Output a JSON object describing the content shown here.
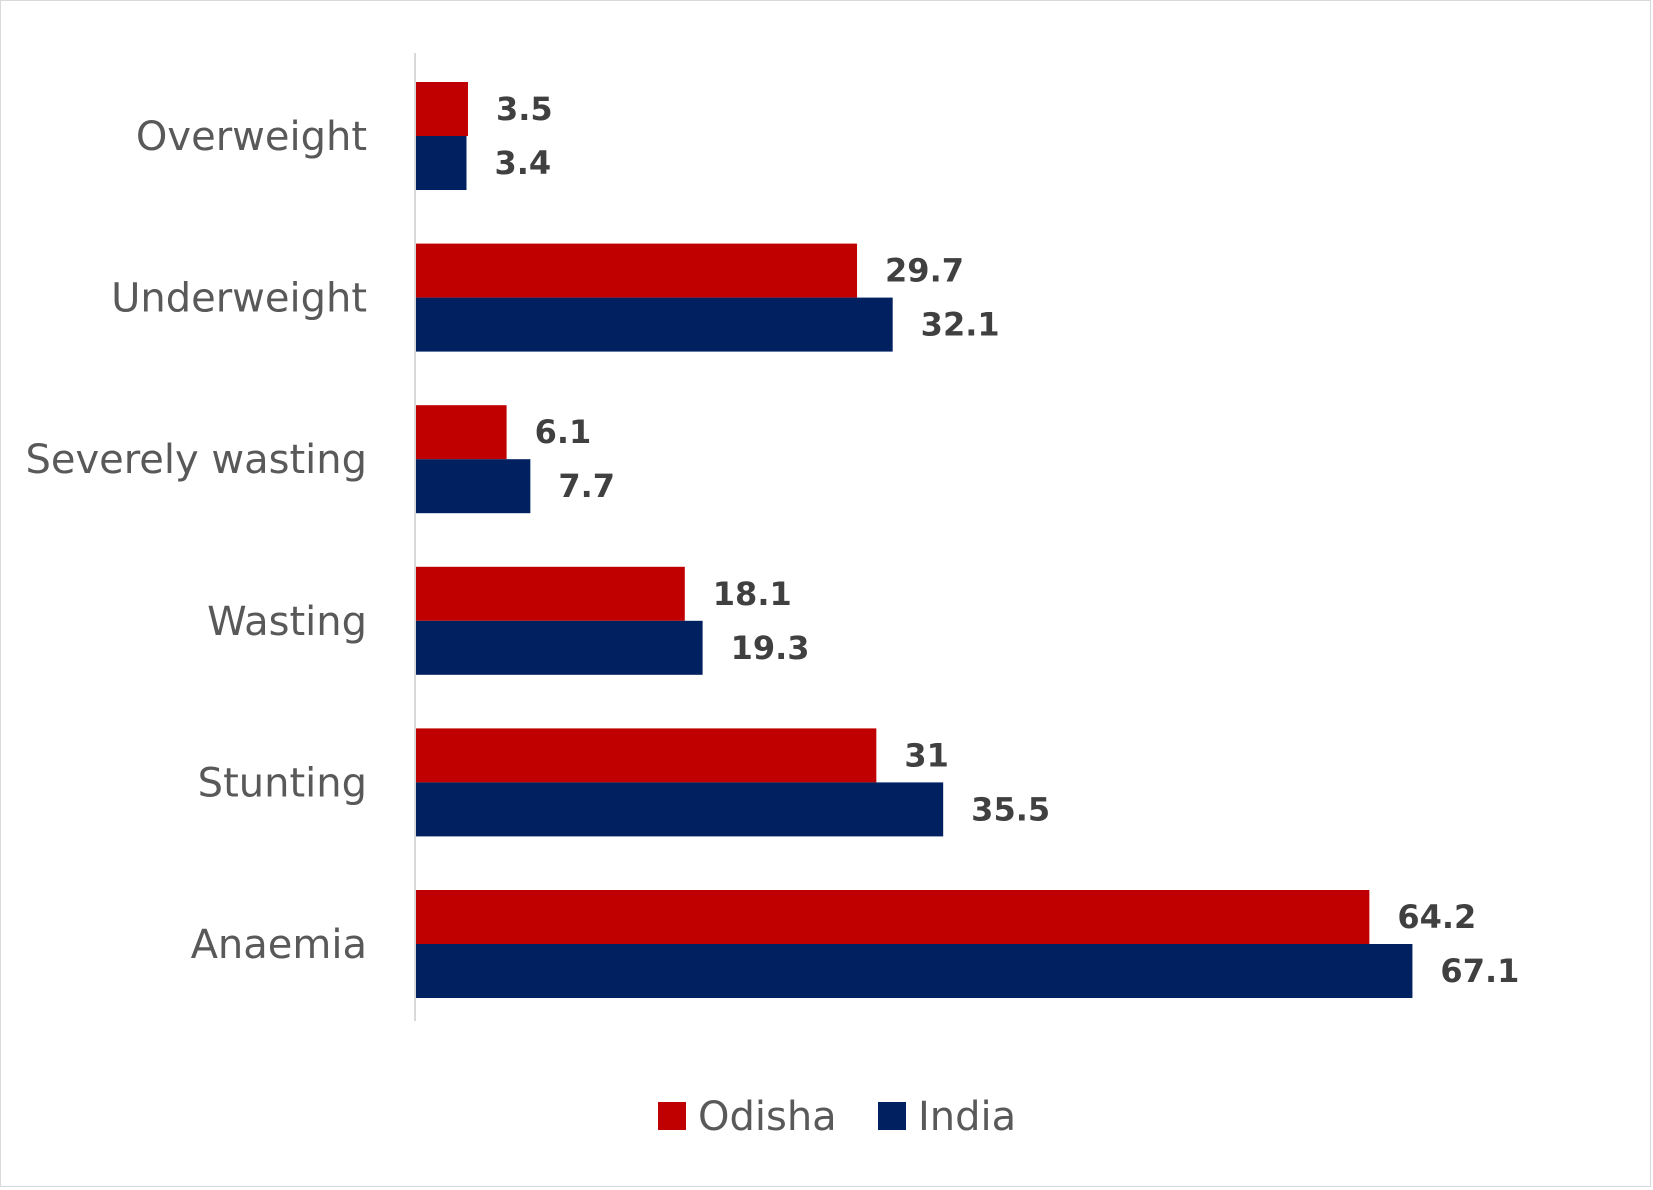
{
  "chart_data": {
    "type": "bar",
    "orientation": "horizontal",
    "categories": [
      "Overweight",
      "Underweight",
      "Severely wasting",
      "Wasting",
      "Stunting",
      "Anaemia"
    ],
    "series": [
      {
        "name": "Odisha",
        "color": "#c00000",
        "values": [
          3.5,
          29.7,
          6.1,
          18.1,
          31,
          64.2
        ]
      },
      {
        "name": "India",
        "color": "#002060",
        "values": [
          3.4,
          32.1,
          7.7,
          19.3,
          35.5,
          67.1
        ]
      }
    ],
    "xlim": [
      0,
      75
    ],
    "grid": false,
    "legend": "bottom-center",
    "title": "",
    "xlabel": "",
    "ylabel": ""
  }
}
